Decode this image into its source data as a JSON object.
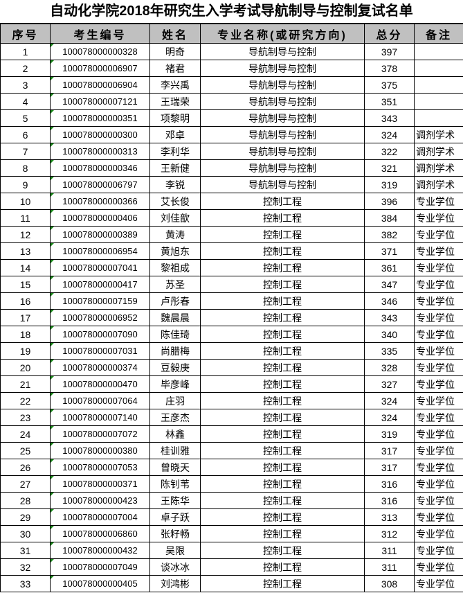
{
  "title": "自动化学院2018年研究生入学考试导航制导与控制复试名单",
  "headers": [
    "序号",
    "考生编号",
    "姓名",
    "专业名称(或研究方向)",
    "总分",
    "备注"
  ],
  "comment_marker_color": "#1a8a1a",
  "rows": [
    [
      "1",
      "100078000000328",
      "明奇",
      "导航制导与控制",
      "397",
      ""
    ],
    [
      "2",
      "100078000006907",
      "褚君",
      "导航制导与控制",
      "378",
      ""
    ],
    [
      "3",
      "100078000006904",
      "李兴禹",
      "导航制导与控制",
      "375",
      ""
    ],
    [
      "4",
      "100078000007121",
      "王瑞荣",
      "导航制导与控制",
      "351",
      ""
    ],
    [
      "5",
      "100078000000351",
      "项黎明",
      "导航制导与控制",
      "343",
      ""
    ],
    [
      "6",
      "100078000000300",
      "邓卓",
      "导航制导与控制",
      "324",
      "调剂学术"
    ],
    [
      "7",
      "100078000000313",
      "李利华",
      "导航制导与控制",
      "322",
      "调剂学术"
    ],
    [
      "8",
      "100078000000346",
      "王新健",
      "导航制导与控制",
      "321",
      "调剂学术"
    ],
    [
      "9",
      "100078000006797",
      "李锐",
      "导航制导与控制",
      "319",
      "调剂学术"
    ],
    [
      "10",
      "100078000000366",
      "艾长俊",
      "控制工程",
      "396",
      "专业学位"
    ],
    [
      "11",
      "100078000000406",
      "刘佳歆",
      "控制工程",
      "384",
      "专业学位"
    ],
    [
      "12",
      "100078000000389",
      "黄涛",
      "控制工程",
      "382",
      "专业学位"
    ],
    [
      "13",
      "100078000006954",
      "黄旭东",
      "控制工程",
      "371",
      "专业学位"
    ],
    [
      "14",
      "100078000007041",
      "黎祖成",
      "控制工程",
      "361",
      "专业学位"
    ],
    [
      "15",
      "100078000000417",
      "苏圣",
      "控制工程",
      "347",
      "专业学位"
    ],
    [
      "16",
      "100078000007159",
      "卢彤春",
      "控制工程",
      "346",
      "专业学位"
    ],
    [
      "17",
      "100078000006952",
      "魏晨晨",
      "控制工程",
      "343",
      "专业学位"
    ],
    [
      "18",
      "100078000007090",
      "陈佳琦",
      "控制工程",
      "340",
      "专业学位"
    ],
    [
      "19",
      "100078000007031",
      "尚腊梅",
      "控制工程",
      "335",
      "专业学位"
    ],
    [
      "20",
      "100078000000374",
      "豆毅庚",
      "控制工程",
      "328",
      "专业学位"
    ],
    [
      "21",
      "100078000000470",
      "毕彦峰",
      "控制工程",
      "327",
      "专业学位"
    ],
    [
      "22",
      "100078000007064",
      "庄羽",
      "控制工程",
      "324",
      "专业学位"
    ],
    [
      "23",
      "100078000007140",
      "王彦杰",
      "控制工程",
      "324",
      "专业学位"
    ],
    [
      "24",
      "100078000007072",
      "林鑫",
      "控制工程",
      "319",
      "专业学位"
    ],
    [
      "25",
      "100078000000380",
      "桂训雅",
      "控制工程",
      "317",
      "专业学位"
    ],
    [
      "26",
      "100078000007053",
      "曾晓天",
      "控制工程",
      "317",
      "专业学位"
    ],
    [
      "27",
      "100078000000371",
      "陈钊苇",
      "控制工程",
      "316",
      "专业学位"
    ],
    [
      "28",
      "100078000000423",
      "王陈华",
      "控制工程",
      "316",
      "专业学位"
    ],
    [
      "29",
      "100078000007004",
      "卓子跃",
      "控制工程",
      "313",
      "专业学位"
    ],
    [
      "30",
      "100078000006860",
      "张籽畅",
      "控制工程",
      "312",
      "专业学位"
    ],
    [
      "31",
      "100078000000432",
      "吴限",
      "控制工程",
      "311",
      "专业学位"
    ],
    [
      "32",
      "100078000007049",
      "谈冰冰",
      "控制工程",
      "311",
      "专业学位"
    ],
    [
      "33",
      "100078000000405",
      "刘鸿彬",
      "控制工程",
      "308",
      "专业学位"
    ]
  ]
}
